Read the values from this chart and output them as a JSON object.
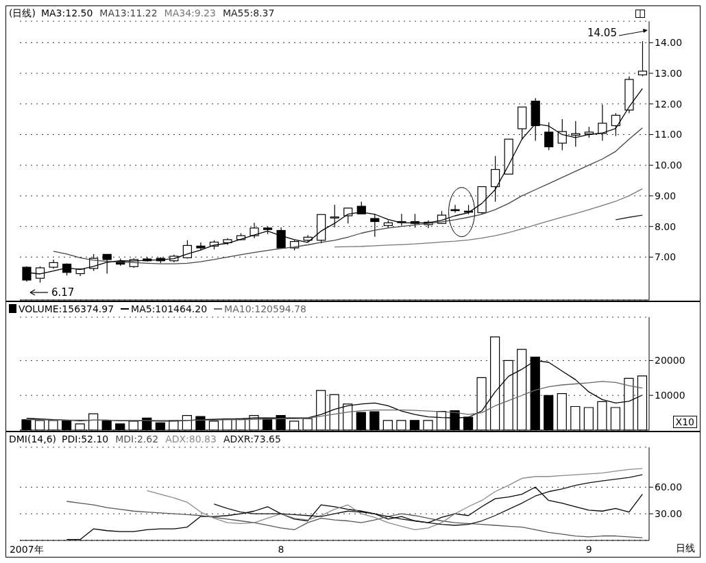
{
  "chart_data": [
    {
      "type": "candlestick",
      "title": "(日线)",
      "legend": "top left",
      "grid": "y",
      "tick_labels": "y",
      "color": "#000000",
      "marker": "none",
      "line_style": "solid",
      "categories": [
        null,
        null,
        null,
        null,
        null,
        null,
        null,
        null,
        null,
        null,
        null,
        null,
        null,
        null,
        null,
        null,
        null,
        null,
        null,
        null,
        null,
        null,
        null,
        null,
        null,
        null,
        null,
        null,
        null,
        null,
        null,
        null,
        null,
        null,
        null,
        null,
        null,
        null,
        null,
        null,
        null,
        null,
        null,
        null,
        null,
        null,
        null
      ],
      "ohlc": [
        [
          6.67,
          6.7,
          6.2,
          6.25
        ],
        [
          6.31,
          6.7,
          6.17,
          6.65
        ],
        [
          6.67,
          6.92,
          6.62,
          6.82
        ],
        [
          6.77,
          6.8,
          6.4,
          6.5
        ],
        [
          6.46,
          6.63,
          6.38,
          6.61
        ],
        [
          6.63,
          7.1,
          6.55,
          6.96
        ],
        [
          7.09,
          7.1,
          6.46,
          6.92
        ],
        [
          6.86,
          6.95,
          6.72,
          6.77
        ],
        [
          6.69,
          6.96,
          6.65,
          6.92
        ],
        [
          6.94,
          7.0,
          6.85,
          6.88
        ],
        [
          6.96,
          7.0,
          6.8,
          6.88
        ],
        [
          6.88,
          7.08,
          6.83,
          7.03
        ],
        [
          6.98,
          7.55,
          6.95,
          7.38
        ],
        [
          7.36,
          7.48,
          7.22,
          7.3
        ],
        [
          7.36,
          7.55,
          7.25,
          7.49
        ],
        [
          7.47,
          7.62,
          7.4,
          7.57
        ],
        [
          7.57,
          7.78,
          7.55,
          7.7
        ],
        [
          7.7,
          8.12,
          7.62,
          7.95
        ],
        [
          7.95,
          8.0,
          7.75,
          7.9
        ],
        [
          7.87,
          7.97,
          7.28,
          7.3
        ],
        [
          7.3,
          7.55,
          7.22,
          7.51
        ],
        [
          7.55,
          7.72,
          7.5,
          7.65
        ],
        [
          7.55,
          8.39,
          7.45,
          8.39
        ],
        [
          8.29,
          8.71,
          7.97,
          8.31
        ],
        [
          8.35,
          8.62,
          8.1,
          8.6
        ],
        [
          8.66,
          8.81,
          8.4,
          8.41
        ],
        [
          8.26,
          8.41,
          7.66,
          8.16
        ],
        [
          8.03,
          8.2,
          7.95,
          8.12
        ],
        [
          8.14,
          8.41,
          8.02,
          8.16
        ],
        [
          8.16,
          8.41,
          7.96,
          8.1
        ],
        [
          8.06,
          8.2,
          7.95,
          8.14
        ],
        [
          8.1,
          8.5,
          8.08,
          8.37
        ],
        [
          8.55,
          8.71,
          8.45,
          8.52
        ],
        [
          8.5,
          8.7,
          8.4,
          8.47
        ],
        [
          8.45,
          9.3,
          8.4,
          9.3
        ],
        [
          9.3,
          10.3,
          8.81,
          9.86
        ],
        [
          9.71,
          10.85,
          9.71,
          10.85
        ],
        [
          11.19,
          11.9,
          10.83,
          11.9
        ],
        [
          12.09,
          12.19,
          10.8,
          11.29
        ],
        [
          11.08,
          11.4,
          10.49,
          10.6
        ],
        [
          10.72,
          11.5,
          10.49,
          11.1
        ],
        [
          10.98,
          11.44,
          10.6,
          11.03
        ],
        [
          11.02,
          11.25,
          10.9,
          11.08
        ],
        [
          11.04,
          11.98,
          10.8,
          11.37
        ],
        [
          11.29,
          11.7,
          10.95,
          11.63
        ],
        [
          11.8,
          12.9,
          11.7,
          12.8
        ],
        [
          12.95,
          14.05,
          12.9,
          13.07
        ]
      ],
      "series": [
        {
          "name": "MA3:12.50",
          "type": "line",
          "color": "#000000",
          "values": [
            6.5,
            6.45,
            6.55,
            6.65,
            6.6,
            6.7,
            6.83,
            6.88,
            6.87,
            6.9,
            6.91,
            6.95,
            7.1,
            7.23,
            7.39,
            7.45,
            7.58,
            7.72,
            7.85,
            7.7,
            7.57,
            7.48,
            7.85,
            8.1,
            8.4,
            8.47,
            8.4,
            8.23,
            8.12,
            8.12,
            8.12,
            8.2,
            8.35,
            8.45,
            8.75,
            9.2,
            10.0,
            10.85,
            11.35,
            11.28,
            11.0,
            10.9,
            11.0,
            11.05,
            11.2,
            11.9,
            12.5
          ]
        },
        {
          "name": "MA13:11.22",
          "type": "line",
          "color": "#444444",
          "values": [
            null,
            null,
            7.19,
            7.1,
            6.98,
            6.9,
            6.86,
            6.84,
            6.82,
            6.8,
            6.78,
            6.78,
            6.8,
            6.85,
            6.92,
            7.0,
            7.08,
            7.15,
            7.22,
            7.28,
            7.33,
            7.4,
            7.48,
            7.55,
            7.65,
            7.78,
            7.88,
            7.95,
            8.0,
            8.05,
            8.1,
            8.15,
            8.22,
            8.3,
            8.4,
            8.55,
            8.75,
            9.0,
            9.2,
            9.4,
            9.6,
            9.8,
            10.0,
            10.2,
            10.45,
            10.85,
            11.22
          ]
        },
        {
          "name": "MA34:9.23",
          "type": "line",
          "color": "#777777",
          "values": [
            null,
            null,
            null,
            null,
            null,
            null,
            null,
            null,
            null,
            null,
            null,
            null,
            null,
            null,
            null,
            null,
            null,
            null,
            null,
            null,
            null,
            null,
            null,
            7.33,
            7.34,
            7.35,
            7.37,
            7.39,
            7.41,
            7.43,
            7.46,
            7.49,
            7.52,
            7.56,
            7.62,
            7.7,
            7.8,
            7.92,
            8.05,
            8.18,
            8.3,
            8.42,
            8.55,
            8.68,
            8.82,
            9.0,
            9.23
          ]
        },
        {
          "name": "MA55:8.37",
          "type": "line",
          "color": "#222222",
          "values": [
            null,
            null,
            null,
            null,
            null,
            null,
            null,
            null,
            null,
            null,
            null,
            null,
            null,
            null,
            null,
            null,
            null,
            null,
            null,
            null,
            null,
            null,
            null,
            null,
            null,
            null,
            null,
            null,
            null,
            null,
            null,
            null,
            null,
            null,
            null,
            null,
            null,
            null,
            null,
            null,
            null,
            null,
            null,
            null,
            8.22,
            8.3,
            8.37
          ]
        }
      ],
      "ylim": [
        5.6,
        14.7
      ],
      "yticks": [
        {
          "value": 7,
          "label": "7.00"
        },
        {
          "value": 8,
          "label": "8.00"
        },
        {
          "value": 9,
          "label": "9.00"
        },
        {
          "value": 10,
          "label": "10.00"
        },
        {
          "value": 11,
          "label": "11.00"
        },
        {
          "value": 12,
          "label": "12.00"
        },
        {
          "value": 13,
          "label": "13.00"
        },
        {
          "value": 14,
          "label": "14.00"
        }
      ],
      "annotations": [
        "14.05",
        "6.17"
      ]
    },
    {
      "type": "bar",
      "legend": "top left",
      "grid": "y",
      "tick_labels": "y",
      "marker": "none",
      "line_style": "solid",
      "categories": [
        null,
        null,
        null,
        null,
        null,
        null,
        null,
        null,
        null,
        null,
        null,
        null,
        null,
        null,
        null,
        null,
        null,
        null,
        null,
        null,
        null,
        null,
        null,
        null,
        null,
        null,
        null,
        null,
        null,
        null,
        null,
        null,
        null,
        null,
        null,
        null,
        null,
        null,
        null,
        null,
        null,
        null,
        null,
        null,
        null,
        null,
        null
      ],
      "series": [
        {
          "name": "VOLUME:156374.97",
          "type": "bar",
          "colors": [
            "#000000",
            "#ffffff",
            "#ffffff",
            "#000000",
            "#ffffff",
            "#ffffff",
            "#000000",
            "#000000",
            "#ffffff",
            "#000000",
            "#000000",
            "#ffffff",
            "#ffffff",
            "#000000",
            "#ffffff",
            "#ffffff",
            "#ffffff",
            "#ffffff",
            "#000000",
            "#000000",
            "#ffffff",
            "#ffffff",
            "#ffffff",
            "#ffffff",
            "#ffffff",
            "#000000",
            "#000000",
            "#ffffff",
            "#ffffff",
            "#000000",
            "#ffffff",
            "#ffffff",
            "#000000",
            "#000000",
            "#ffffff",
            "#ffffff",
            "#ffffff",
            "#ffffff",
            "#000000",
            "#000000",
            "#ffffff",
            "#ffffff",
            "#ffffff",
            "#ffffff",
            "#ffffff",
            "#ffffff",
            "#ffffff"
          ],
          "values": [
            3000,
            2800,
            2800,
            2800,
            1800,
            4700,
            2800,
            1800,
            2600,
            3500,
            2100,
            2800,
            4200,
            3900,
            2600,
            3200,
            3300,
            4200,
            3300,
            4200,
            2600,
            3300,
            11400,
            10200,
            7500,
            5100,
            5300,
            2800,
            2800,
            2800,
            2800,
            5400,
            5600,
            3700,
            15100,
            26800,
            20000,
            23200,
            21000,
            10000,
            10500,
            6800,
            6500,
            8200,
            6500,
            14900,
            15600
          ]
        },
        {
          "name": "MA5:101464.20",
          "type": "line",
          "color": "#000000",
          "values": [
            3400,
            3200,
            3000,
            2900,
            2700,
            2900,
            2900,
            2700,
            2700,
            2700,
            2600,
            2600,
            2800,
            3000,
            3100,
            3200,
            3200,
            3500,
            3500,
            3500,
            3500,
            3500,
            4500,
            6000,
            7000,
            7500,
            7800,
            7000,
            5500,
            4500,
            3800,
            3600,
            3500,
            3700,
            5500,
            11000,
            15500,
            17500,
            20000,
            19500,
            17000,
            14500,
            11000,
            8800,
            7800,
            8300,
            10100
          ]
        },
        {
          "name": "MA10:120594.78",
          "type": "line",
          "color": "#666666",
          "values": [
            3000,
            3000,
            2900,
            2900,
            2900,
            2900,
            2900,
            2800,
            2800,
            2800,
            2800,
            2800,
            2800,
            2900,
            2900,
            3000,
            3000,
            3100,
            3200,
            3300,
            3300,
            3400,
            4000,
            4600,
            5200,
            5600,
            5800,
            5800,
            5800,
            5700,
            5500,
            5300,
            5100,
            4500,
            5000,
            7000,
            8500,
            10000,
            11500,
            12500,
            13000,
            13300,
            13600,
            14000,
            13700,
            12800,
            12100
          ]
        }
      ],
      "ylim": [
        0,
        32500
      ],
      "yticks": [
        10000,
        20000
      ],
      "annotations": [
        "X10"
      ]
    },
    {
      "type": "line",
      "title": "DMI(14,6)",
      "legend": "top left",
      "grid": "y",
      "tick_labels": "xy",
      "marker": "none",
      "line_style": "solid",
      "categories": [
        "2007年",
        null,
        null,
        null,
        null,
        null,
        null,
        null,
        null,
        null,
        null,
        null,
        null,
        null,
        null,
        null,
        null,
        null,
        null,
        "8",
        null,
        null,
        null,
        null,
        null,
        null,
        null,
        null,
        null,
        null,
        null,
        null,
        null,
        null,
        null,
        null,
        null,
        null,
        null,
        null,
        null,
        null,
        "9",
        null,
        null,
        null,
        null
      ],
      "series": [
        {
          "name": "PDI:52.10",
          "color": "#000000",
          "values": [
            null,
            null,
            null,
            1,
            1,
            13,
            11,
            10,
            10,
            12,
            13,
            13,
            15,
            27,
            27,
            28,
            30,
            33,
            38,
            30,
            24,
            22,
            40,
            38,
            35,
            33,
            30,
            24,
            27,
            22,
            20,
            26,
            30,
            28,
            38,
            47,
            49,
            52,
            60,
            45,
            42,
            38,
            34,
            33,
            36,
            32,
            52
          ]
        },
        {
          "name": "MDI:2.62",
          "color": "#555555",
          "values": [
            null,
            null,
            null,
            44,
            42,
            40,
            37,
            35,
            33,
            32,
            31,
            30,
            29,
            28,
            26,
            24,
            22,
            20,
            17,
            14,
            12,
            20,
            25,
            23,
            22,
            20,
            23,
            27,
            30,
            28,
            25,
            22,
            20,
            19,
            18,
            17,
            16,
            15,
            12,
            9,
            7,
            5,
            4,
            5,
            5,
            4,
            3
          ]
        },
        {
          "name": "ADX:80.83",
          "color": "#8a8a8a",
          "values": [
            null,
            null,
            null,
            null,
            null,
            null,
            null,
            null,
            null,
            56,
            52,
            48,
            43,
            32,
            25,
            20,
            19,
            20,
            25,
            30,
            25,
            23,
            28,
            35,
            40,
            30,
            26,
            20,
            16,
            12,
            14,
            20,
            30,
            38,
            45,
            55,
            62,
            70,
            72,
            72,
            73,
            74,
            75,
            76,
            78,
            80,
            81
          ]
        },
        {
          "name": "ADXR:73.65",
          "color": "#111111",
          "values": [
            null,
            null,
            null,
            null,
            null,
            null,
            null,
            null,
            null,
            null,
            null,
            null,
            null,
            null,
            41,
            36,
            32,
            30,
            30,
            30,
            29,
            28,
            27,
            30,
            33,
            32,
            30,
            27,
            24,
            22,
            20,
            18,
            17,
            18,
            22,
            28,
            35,
            42,
            50,
            55,
            58,
            62,
            65,
            67,
            69,
            71,
            74
          ]
        }
      ],
      "ylim": [
        0,
        105
      ],
      "yticks": [
        {
          "value": 30,
          "label": "30.00"
        },
        {
          "value": 60,
          "label": "60.00"
        }
      ],
      "annotations": [
        "日线"
      ]
    }
  ]
}
